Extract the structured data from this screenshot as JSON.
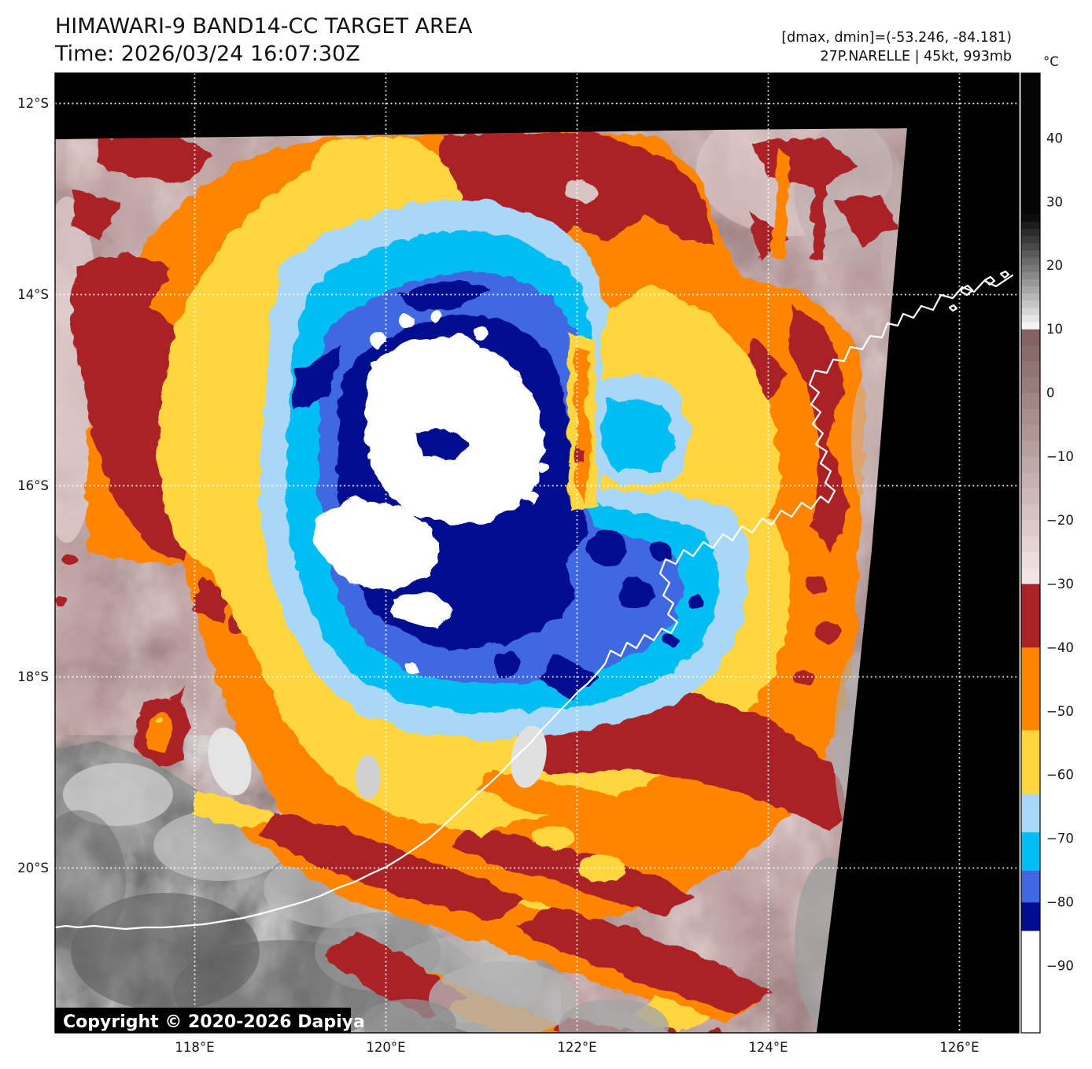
{
  "header": {
    "title": "HIMAWARI-9 BAND14-CC TARGET AREA",
    "time": "Time: 2026/03/24 16:07:30Z",
    "dmax_dmin": "[dmax, dmin]=(-53.246, -84.181)",
    "storm_info": "27P.NARELLE | 45kt, 993mb"
  },
  "map": {
    "copyright": "Copyright © 2020-2026 Dapiya"
  },
  "axes": {
    "lat": [
      {
        "value": 12,
        "label": "12°S"
      },
      {
        "value": 14,
        "label": "14°S"
      },
      {
        "value": 16,
        "label": "16°S"
      },
      {
        "value": 18,
        "label": "18°S"
      },
      {
        "value": 20,
        "label": "20°S"
      }
    ],
    "lon": [
      {
        "value": 118,
        "label": "118°E"
      },
      {
        "value": 120,
        "label": "120°E"
      },
      {
        "value": 122,
        "label": "122°E"
      },
      {
        "value": 124,
        "label": "124°E"
      },
      {
        "value": 126,
        "label": "126°E"
      }
    ]
  },
  "colorbar": {
    "unit": "°C",
    "ticks": [
      {
        "value": 40,
        "label": "40"
      },
      {
        "value": 30,
        "label": "30"
      },
      {
        "value": 20,
        "label": "20"
      },
      {
        "value": 10,
        "label": "10"
      },
      {
        "value": 0,
        "label": "0"
      },
      {
        "value": -10,
        "label": "−10"
      },
      {
        "value": -20,
        "label": "−20"
      },
      {
        "value": -30,
        "label": "−30"
      },
      {
        "value": -40,
        "label": "−40"
      },
      {
        "value": -50,
        "label": "−50"
      },
      {
        "value": -60,
        "label": "−60"
      },
      {
        "value": -70,
        "label": "−70"
      },
      {
        "value": -80,
        "label": "−80"
      },
      {
        "value": -90,
        "label": "−90"
      }
    ],
    "segments": [
      {
        "t_from": 50.2,
        "t_to": 28,
        "color": "#050505"
      },
      {
        "t_from": 28,
        "t_to": 10,
        "color": "#050505",
        "color2": "#fcfcfc"
      },
      {
        "t_from": 10,
        "t_to": -30,
        "color": "#7E5E5E",
        "color2": "#F7E9E9"
      },
      {
        "t_from": -30,
        "t_to": -40,
        "color": "#AA2126"
      },
      {
        "t_from": -40,
        "t_to": -53,
        "color": "#FF8500"
      },
      {
        "t_from": -53,
        "t_to": -63,
        "color": "#FFD640"
      },
      {
        "t_from": -63,
        "t_to": -69,
        "color": "#A8D7F8"
      },
      {
        "t_from": -69,
        "t_to": -75,
        "color": "#00BDF2"
      },
      {
        "t_from": -75,
        "t_to": -80,
        "color": "#3F68E0"
      },
      {
        "t_from": -80,
        "t_to": -84.5,
        "color": "#000D8F"
      },
      {
        "t_from": -84.5,
        "t_to": -100.5,
        "color": "#FFFFFF"
      }
    ]
  }
}
